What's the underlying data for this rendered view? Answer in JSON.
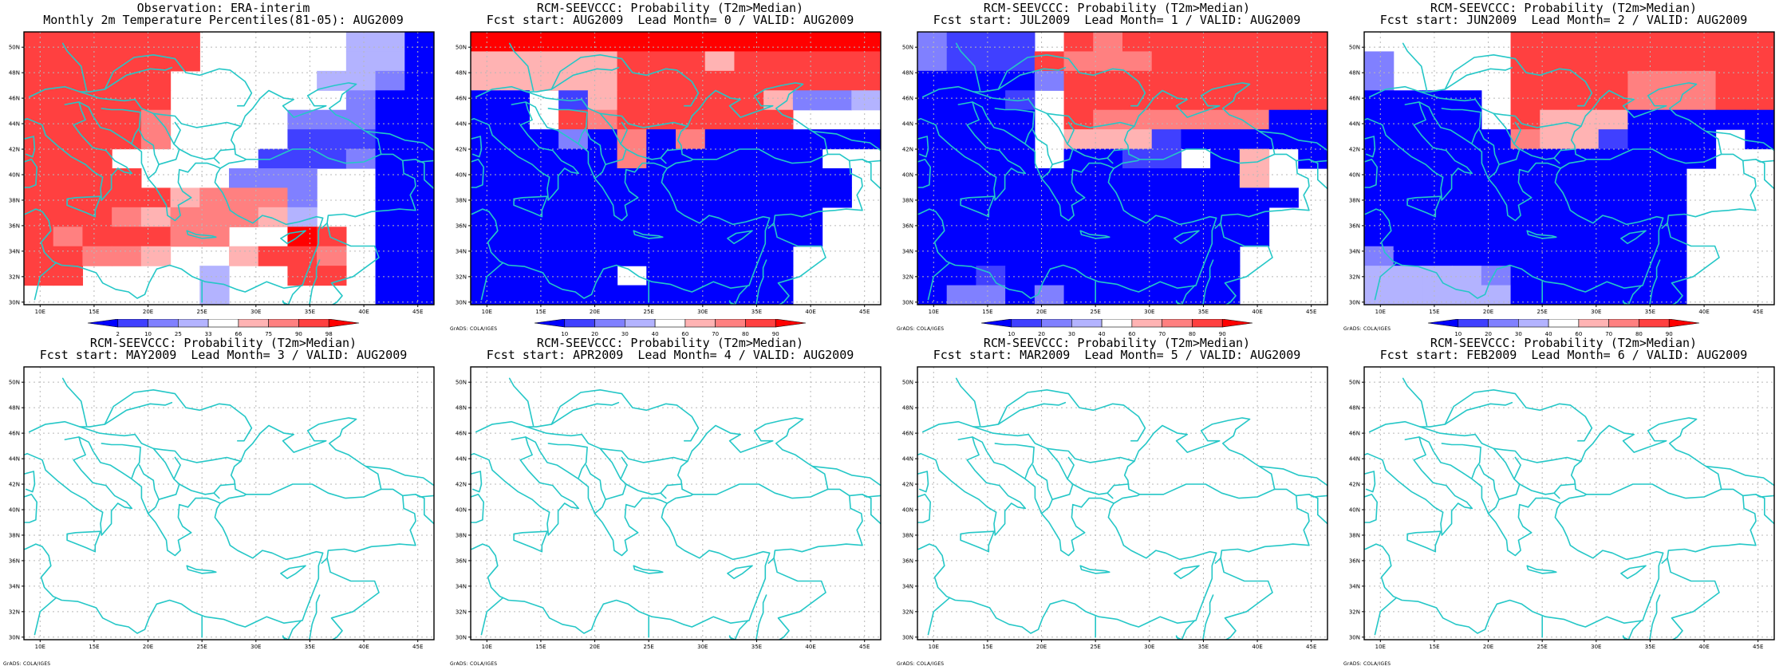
{
  "credit": "GrADS: COLA/IGES",
  "colors": {
    "coast": "#25c7c7",
    "scale": [
      "#0000ff",
      "#4040ff",
      "#8080ff",
      "#b3b3ff",
      "#ffffff",
      "#ffb3b3",
      "#ff8080",
      "#ff4040",
      "#ff0000"
    ]
  },
  "axes": {
    "lon_ticks": [
      "10E",
      "15E",
      "20E",
      "25E",
      "30E",
      "35E",
      "40E",
      "45E"
    ],
    "lat_ticks": [
      "30N",
      "32N",
      "34N",
      "36N",
      "38N",
      "40N",
      "42N",
      "44N",
      "46N",
      "48N",
      "50N"
    ],
    "lon_range": [
      8.5,
      46.5
    ],
    "lat_range": [
      29.8,
      51.2
    ]
  },
  "panels": [
    {
      "id": "obs",
      "title1": "Observation: ERA-interim",
      "title2": "Monthly 2m Temperature Percentiles(81-05): AUG2009",
      "colorbar": {
        "labels": [
          "2",
          "10",
          "25",
          "33",
          "66",
          "75",
          "90",
          "98"
        ]
      },
      "show_credit": false,
      "grid": [
        "77777744444330",
        "77777744444330",
        "77777444443320",
        "77777444444200",
        "77776444422200",
        "77776444411100",
        "77744444111200",
        "77774442224400",
        "77777566624400",
        "77765666534400",
        "76777664487400",
        "77665445776400",
        "77444434477400",
        "44444434444400"
      ]
    },
    {
      "id": "lead0",
      "title1": "RCM-SEEVCCC: Probability (T2m>Median)",
      "title2": "Fcst start: AUG2009  Lead Month= 0 / VALID: AUG2009",
      "colorbar": {
        "labels": [
          "10",
          "20",
          "30",
          "40",
          "60",
          "70",
          "80",
          "90"
        ]
      },
      "show_credit": true,
      "grid": [
        "88888888888888",
        "55555777577777",
        "55555777777777",
        "00415777775223",
        "00476777777444",
        "00020606000000",
        "00000600000044",
        "00000000000004",
        "00000000000004",
        "00000000000044",
        "00000000000044",
        "00000000000444",
        "00000400000444",
        "00000000000444"
      ]
    },
    {
      "id": "lead1",
      "title1": "RCM-SEEVCCC: Probability (T2m>Median)",
      "title2": "Fcst start: JUL2009  Lead Month= 1 / VALID: AUG2009",
      "colorbar": {
        "labels": [
          "10",
          "20",
          "30",
          "40",
          "60",
          "70",
          "80",
          "90"
        ]
      },
      "show_credit": true,
      "grid": [
        "21114767777777",
        "21117666777777",
        "00002777777777",
        "00014777777777",
        "00004766666600",
        "00004555100000",
        "00004001140540",
        "00000000000544",
        "00000000000004",
        "00000000000044",
        "00000000000044",
        "00000000000444",
        "00100000000444",
        "02202000000444"
      ]
    },
    {
      "id": "lead2",
      "title1": "RCM-SEEVCCC: Probability (T2m>Median)",
      "title2": "Fcst start: JUN2009  Lead Month= 2 / VALID: AUG2009",
      "colorbar": {
        "labels": [
          "10",
          "20",
          "30",
          "40",
          "60",
          "70",
          "80",
          "90"
        ]
      },
      "show_credit": true,
      "grid": [
        "44444777777777",
        "24444777777777",
        "24444777766677",
        "00004777766677",
        "00004755500000",
        "00000655100040",
        "00000000000044",
        "00000000000444",
        "00000000000444",
        "00000000000444",
        "00000000000444",
        "20000000000444",
        "33332000000444",
        "33333000000444"
      ]
    },
    {
      "id": "lead3",
      "title1": "RCM-SEEVCCC: Probability (T2m>Median)",
      "title2": "Fcst start: MAY2009  Lead Month= 3 / VALID: AUG2009",
      "colorbar": null,
      "show_credit": true,
      "grid": []
    },
    {
      "id": "lead4",
      "title1": "RCM-SEEVCCC: Probability (T2m>Median)",
      "title2": "Fcst start: APR2009  Lead Month= 4 / VALID: AUG2009",
      "colorbar": null,
      "show_credit": true,
      "grid": []
    },
    {
      "id": "lead5",
      "title1": "RCM-SEEVCCC: Probability (T2m>Median)",
      "title2": "Fcst start: MAR2009  Lead Month= 5 / VALID: AUG2009",
      "colorbar": null,
      "show_credit": true,
      "grid": []
    },
    {
      "id": "lead6",
      "title1": "RCM-SEEVCCC: Probability (T2m>Median)",
      "title2": "Fcst start: FEB2009  Lead Month= 6 / VALID: AUG2009",
      "colorbar": null,
      "show_credit": true,
      "grid": []
    }
  ]
}
